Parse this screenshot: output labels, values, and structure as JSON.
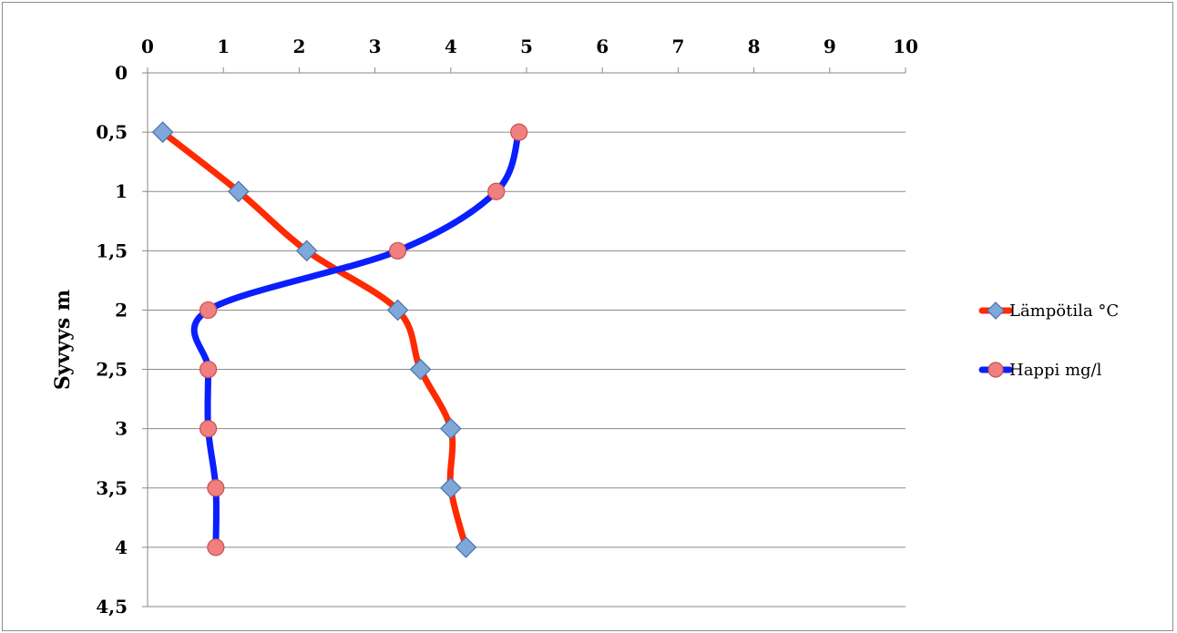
{
  "chart_data": {
    "type": "line",
    "ylabel": "Syvyys m",
    "x_axis_position": "top",
    "y_inverted": true,
    "xlim": [
      0,
      10
    ],
    "ylim": [
      0,
      4.5
    ],
    "x_ticks": [
      "0",
      "1",
      "2",
      "3",
      "4",
      "5",
      "6",
      "7",
      "8",
      "9",
      "10"
    ],
    "y_ticks": [
      "0",
      "0,5",
      "1",
      "1,5",
      "2",
      "2,5",
      "3",
      "3,5",
      "4",
      "4,5"
    ],
    "grid": "horizontal",
    "legend_position": "right",
    "series": [
      {
        "name": "Lämpötila °C",
        "color": "#ff2a00",
        "marker": "diamond",
        "marker_color": "#7fa7d8",
        "points": [
          {
            "x": 0.2,
            "y": 0.5
          },
          {
            "x": 1.2,
            "y": 1.0
          },
          {
            "x": 2.1,
            "y": 1.5
          },
          {
            "x": 3.3,
            "y": 2.0
          },
          {
            "x": 3.6,
            "y": 2.5
          },
          {
            "x": 4.0,
            "y": 3.0
          },
          {
            "x": 4.0,
            "y": 3.5
          },
          {
            "x": 4.2,
            "y": 4.0
          }
        ]
      },
      {
        "name": "Happi mg/l",
        "color": "#0a1fff",
        "marker": "circle",
        "marker_color": "#f07f7f",
        "points": [
          {
            "x": 4.9,
            "y": 0.5
          },
          {
            "x": 4.6,
            "y": 1.0
          },
          {
            "x": 3.3,
            "y": 1.5
          },
          {
            "x": 0.8,
            "y": 2.0
          },
          {
            "x": 0.8,
            "y": 2.5
          },
          {
            "x": 0.8,
            "y": 3.0
          },
          {
            "x": 0.9,
            "y": 3.5
          },
          {
            "x": 0.9,
            "y": 4.0
          }
        ]
      }
    ]
  }
}
